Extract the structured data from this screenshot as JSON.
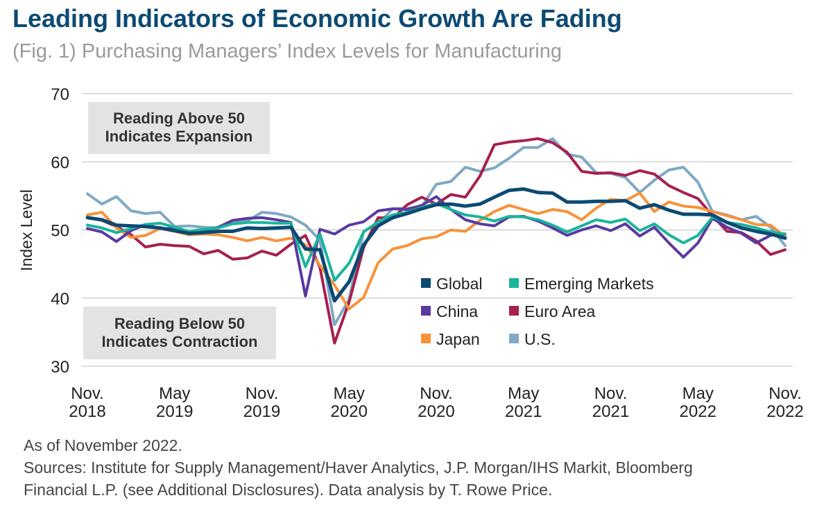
{
  "header": {
    "title": "Leading Indicators of Economic Growth Are Fading",
    "subtitle": "(Fig. 1) Purchasing Managers’ Index Levels for Manufacturing"
  },
  "chart_data": {
    "type": "line",
    "ylabel": "Index Level",
    "ylim": [
      30,
      70
    ],
    "yticks": [
      "70",
      "60",
      "50",
      "40",
      "30"
    ],
    "x_tick_labels": [
      {
        "line1": "Nov.",
        "line2": "2018"
      },
      {
        "line1": "May",
        "line2": "2019"
      },
      {
        "line1": "Nov.",
        "line2": "2019"
      },
      {
        "line1": "May",
        "line2": "2020"
      },
      {
        "line1": "Nov.",
        "line2": "2020"
      },
      {
        "line1": "May",
        "line2": "2021"
      },
      {
        "line1": "Nov.",
        "line2": "2021"
      },
      {
        "line1": "May",
        "line2": "2022"
      },
      {
        "line1": "Nov.",
        "line2": "2022"
      }
    ],
    "x_months": [
      "Nov 2018",
      "Dec 2018",
      "Jan 2019",
      "Feb 2019",
      "Mar 2019",
      "Apr 2019",
      "May 2019",
      "Jun 2019",
      "Jul 2019",
      "Aug 2019",
      "Sep 2019",
      "Oct 2019",
      "Nov 2019",
      "Dec 2019",
      "Jan 2020",
      "Feb 2020",
      "Mar 2020",
      "Apr 2020",
      "May 2020",
      "Jun 2020",
      "Jul 2020",
      "Aug 2020",
      "Sep 2020",
      "Oct 2020",
      "Nov 2020",
      "Dec 2020",
      "Jan 2021",
      "Feb 2021",
      "Mar 2021",
      "Apr 2021",
      "May 2021",
      "Jun 2021",
      "Jul 2021",
      "Aug 2021",
      "Sep 2021",
      "Oct 2021",
      "Nov 2021",
      "Dec 2021",
      "Jan 2022",
      "Feb 2022",
      "Mar 2022",
      "Apr 2022",
      "May 2022",
      "Jun 2022",
      "Jul 2022",
      "Aug 2022",
      "Sep 2022",
      "Oct 2022",
      "Nov 2022"
    ],
    "annotations": {
      "above": [
        "Reading Above 50",
        "Indicates Expansion"
      ],
      "below": [
        "Reading Below 50",
        "Indicates Contraction"
      ]
    },
    "series": [
      {
        "name": "U.S.",
        "color": "#7fa9c4",
        "values": [
          55.3,
          53.8,
          54.9,
          52.8,
          52.4,
          52.6,
          50.5,
          50.6,
          50.4,
          50.3,
          51.1,
          51.3,
          52.6,
          52.4,
          51.9,
          50.7,
          48.5,
          36.1,
          39.8,
          49.8,
          50.9,
          53.1,
          53.2,
          53.4,
          56.7,
          57.1,
          59.2,
          58.6,
          59.1,
          60.5,
          62.1,
          62.1,
          63.4,
          61.1,
          60.7,
          58.4,
          58.3,
          57.7,
          55.5,
          57.3,
          58.8,
          59.2,
          57.0,
          52.7,
          52.2,
          51.5,
          52.0,
          50.4,
          47.7
        ]
      },
      {
        "name": "Euro Area",
        "color": "#a6204f",
        "values": [
          51.8,
          51.4,
          50.5,
          49.3,
          47.5,
          47.9,
          47.7,
          47.6,
          46.5,
          47.0,
          45.7,
          45.9,
          46.9,
          46.3,
          47.9,
          49.2,
          44.5,
          33.4,
          39.4,
          47.4,
          51.8,
          51.7,
          53.7,
          54.8,
          53.8,
          55.2,
          54.8,
          57.9,
          62.5,
          62.9,
          63.1,
          63.4,
          62.8,
          61.4,
          58.6,
          58.3,
          58.4,
          58.0,
          58.7,
          58.2,
          56.5,
          55.5,
          54.6,
          52.1,
          49.8,
          49.6,
          48.4,
          46.4,
          47.1
        ]
      },
      {
        "name": "Japan",
        "color": "#f7933a",
        "values": [
          52.2,
          52.6,
          50.3,
          48.9,
          49.2,
          50.2,
          49.8,
          49.3,
          49.4,
          49.3,
          48.9,
          48.4,
          48.9,
          48.4,
          48.8,
          47.8,
          44.8,
          41.9,
          38.4,
          40.1,
          45.2,
          47.2,
          47.7,
          48.7,
          49.0,
          50.0,
          49.8,
          51.4,
          52.7,
          53.6,
          53.0,
          52.4,
          53.0,
          52.7,
          51.5,
          53.2,
          54.5,
          54.3,
          55.4,
          52.7,
          54.1,
          53.5,
          53.3,
          52.7,
          52.1,
          51.5,
          50.8,
          50.7,
          49.0
        ]
      },
      {
        "name": "China",
        "color": "#5a3aa1",
        "values": [
          50.2,
          49.7,
          48.3,
          49.9,
          50.8,
          50.2,
          50.2,
          49.4,
          49.9,
          50.4,
          51.4,
          51.7,
          51.8,
          51.5,
          51.1,
          40.3,
          50.1,
          49.4,
          50.7,
          51.2,
          52.8,
          53.1,
          53.0,
          53.6,
          54.9,
          53.0,
          51.5,
          50.9,
          50.6,
          51.9,
          52.0,
          51.3,
          50.3,
          49.2,
          50.0,
          50.6,
          49.9,
          50.9,
          49.1,
          50.4,
          48.1,
          46.0,
          48.1,
          51.7,
          50.4,
          49.5,
          48.1,
          49.2,
          49.4
        ]
      },
      {
        "name": "Emerging Markets",
        "color": "#19b59b",
        "values": [
          50.7,
          50.3,
          49.6,
          50.2,
          50.8,
          51.0,
          50.4,
          49.8,
          50.1,
          50.3,
          50.9,
          51.1,
          51.1,
          51.0,
          51.0,
          44.6,
          49.4,
          42.6,
          45.1,
          49.7,
          51.2,
          52.2,
          52.6,
          53.3,
          53.9,
          53.0,
          52.2,
          51.9,
          51.3,
          52.0,
          51.9,
          51.5,
          50.7,
          49.7,
          50.6,
          51.5,
          51.1,
          51.6,
          49.9,
          50.9,
          49.3,
          48.1,
          49.2,
          51.9,
          51.1,
          50.8,
          50.3,
          49.7,
          49.4
        ]
      },
      {
        "name": "Global",
        "color": "#0b4a73",
        "values": [
          51.8,
          51.5,
          50.7,
          50.6,
          50.5,
          50.3,
          49.9,
          49.5,
          49.6,
          49.8,
          49.8,
          50.3,
          50.2,
          50.3,
          50.4,
          47.2,
          47.1,
          39.6,
          42.4,
          47.8,
          50.6,
          51.8,
          52.4,
          53.1,
          53.7,
          53.8,
          53.5,
          53.8,
          54.8,
          55.8,
          56.0,
          55.5,
          55.4,
          54.1,
          54.1,
          54.2,
          54.2,
          54.3,
          53.2,
          53.7,
          52.9,
          52.3,
          52.3,
          52.2,
          51.1,
          50.3,
          49.8,
          49.4,
          48.8
        ]
      }
    ],
    "legend": [
      {
        "label": "Global",
        "color": "#0b4a73"
      },
      {
        "label": "Emerging Markets",
        "color": "#19b59b"
      },
      {
        "label": "China",
        "color": "#5a3aa1"
      },
      {
        "label": "Euro Area",
        "color": "#a6204f"
      },
      {
        "label": "Japan",
        "color": "#f7933a"
      },
      {
        "label": "U.S.",
        "color": "#7fa9c4"
      }
    ]
  },
  "notes": {
    "as_of": "As of November 2022.",
    "sources_line1": "Sources: Institute for Supply Management/Haver Analytics, J.P. Morgan/IHS Markit, Bloomberg",
    "sources_line2": "Financial L.P. (see Additional Disclosures). Data analysis by T. Rowe Price."
  }
}
